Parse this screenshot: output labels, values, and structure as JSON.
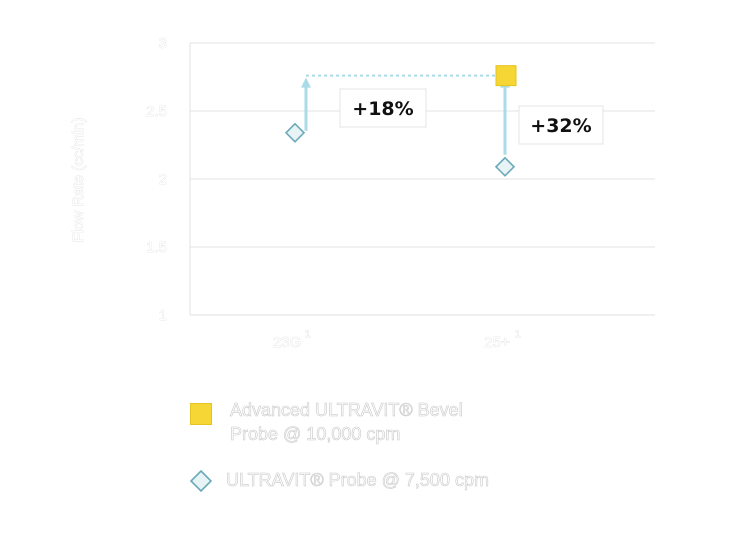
{
  "chart_data": {
    "type": "scatter",
    "ylabel": "Flow Rate (cc/min)",
    "xlabel": "",
    "ylim": [
      1,
      3
    ],
    "yticks": [
      "1",
      "1.5",
      "2",
      "2.5",
      "3"
    ],
    "categories": [
      "23G",
      "25+"
    ],
    "category_superscripts": [
      "1",
      "1"
    ],
    "grid": true,
    "series": [
      {
        "name": "Advanced ULTRAVIT® Bevel Probe @ 10,000 cpm",
        "marker": "square",
        "color": "#f5d635",
        "values": [
          2.76,
          2.76
        ]
      },
      {
        "name": "ULTRAVIT® Probe @ 7,500 cpm",
        "marker": "diamond",
        "color": "#e8f3f5",
        "values": [
          2.34,
          2.09
        ]
      }
    ],
    "annotations": [
      "+18%",
      "+32%"
    ],
    "legend_position": "bottom"
  },
  "legend": {
    "items": [
      {
        "line1": "Advanced ULTRAVIT® Bevel",
        "line2": "Probe @ 10,000 cpm"
      },
      {
        "line1": "ULTRAVIT® Probe @ 7,500 cpm",
        "line2": ""
      }
    ]
  },
  "colors": {
    "arrow": "#a9dbe8",
    "grid": "#e3e3e3",
    "diamond_stroke": "#6aaab8"
  }
}
